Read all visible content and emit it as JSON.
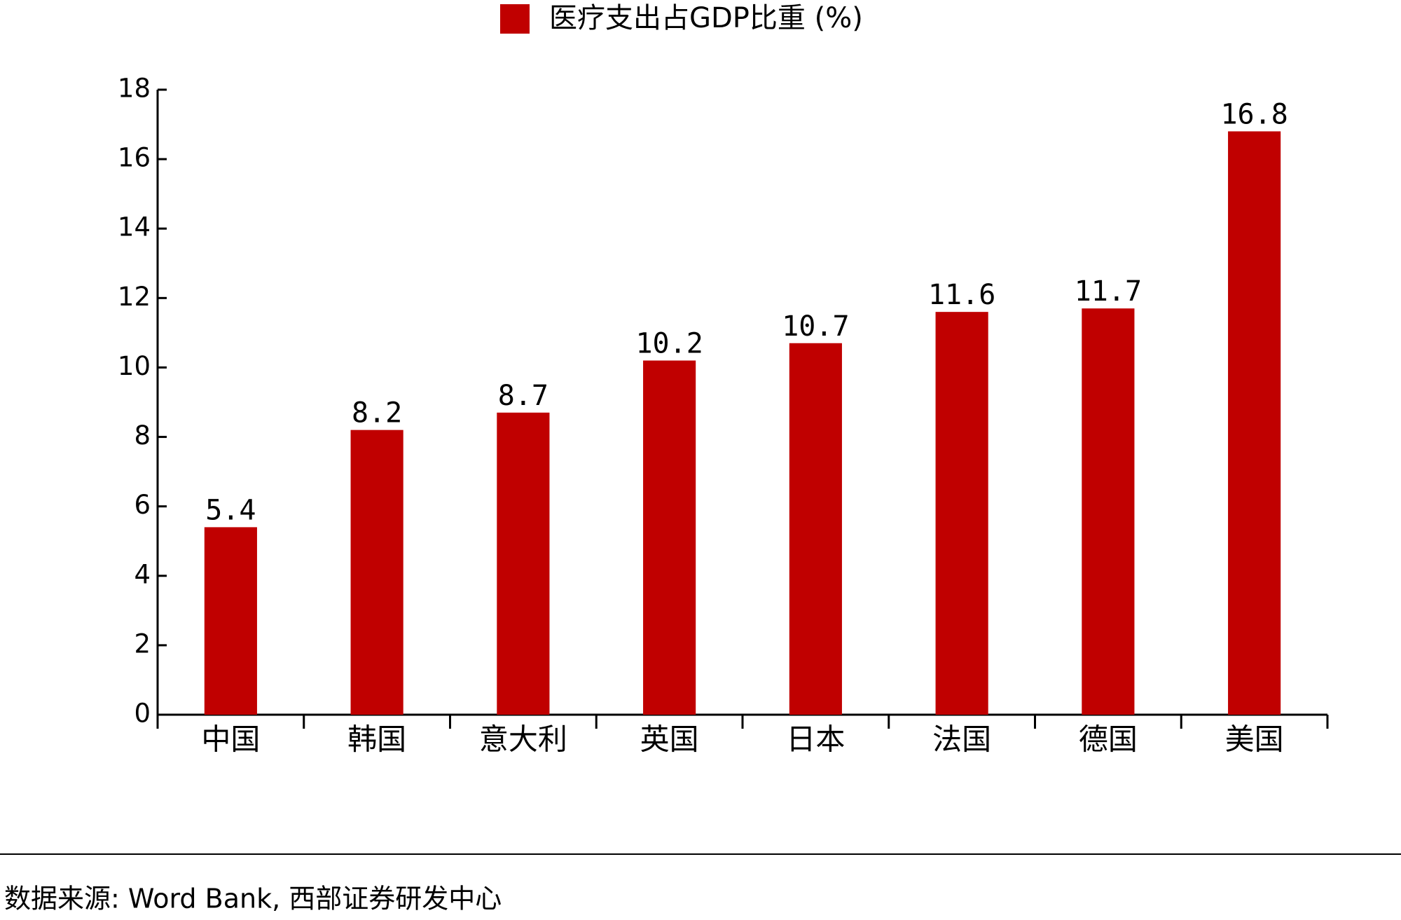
{
  "chart_data": {
    "type": "bar",
    "categories": [
      "中国",
      "韩国",
      "意大利",
      "英国",
      "日本",
      "法国",
      "德国",
      "美国"
    ],
    "series": [
      {
        "name": "医疗支出占GDP比重 (%)",
        "color": "#c00000",
        "values": [
          5.4,
          8.2,
          8.7,
          10.2,
          10.7,
          11.6,
          11.7,
          16.8
        ]
      }
    ],
    "ylim": [
      0,
      18
    ],
    "yticks": [
      0,
      2,
      4,
      6,
      8,
      10,
      12,
      14,
      16,
      18
    ],
    "grid": false,
    "legend": "top",
    "source": "数据来源: Word Bank, 西部证券研发中心"
  }
}
